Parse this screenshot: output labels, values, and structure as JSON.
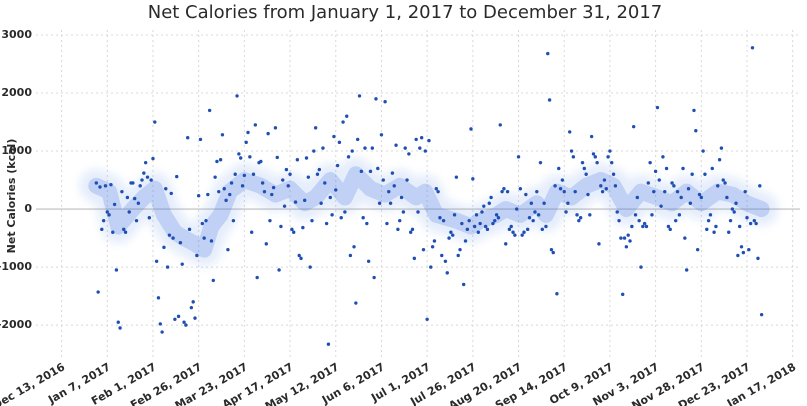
{
  "chart_data": {
    "type": "scatter",
    "title": "Net Calories from January 1, 2017 to December 31, 2017",
    "y_label": "Net Calories (kcal)",
    "xlim": [
      "2016-11-29",
      "2018-01-21"
    ],
    "xticks": [
      {
        "value": "2016-12-13",
        "label": "Dec 13, 2016"
      },
      {
        "value": "2017-01-07",
        "label": "Jan 7, 2017"
      },
      {
        "value": "2017-02-01",
        "label": "Feb 1, 2017"
      },
      {
        "value": "2017-02-26",
        "label": "Feb 26, 2017"
      },
      {
        "value": "2017-03-23",
        "label": "Mar 23, 2017"
      },
      {
        "value": "2017-04-17",
        "label": "Apr 17, 2017"
      },
      {
        "value": "2017-05-12",
        "label": "May 12, 2017"
      },
      {
        "value": "2017-06-06",
        "label": "Jun 6, 2017"
      },
      {
        "value": "2017-07-01",
        "label": "Jul 1, 2017"
      },
      {
        "value": "2017-07-26",
        "label": "Jul 26, 2017"
      },
      {
        "value": "2017-08-20",
        "label": "Aug 20, 2017"
      },
      {
        "value": "2017-09-14",
        "label": "Sep 14, 2017"
      },
      {
        "value": "2017-10-09",
        "label": "Oct 9, 2017"
      },
      {
        "value": "2017-11-03",
        "label": "Nov 3, 2017"
      },
      {
        "value": "2017-11-28",
        "label": "Nov 28, 2017"
      },
      {
        "value": "2017-12-23",
        "label": "Dec 23, 2017"
      },
      {
        "value": "2018-01-17",
        "label": "Jan 17, 2018"
      }
    ],
    "ylim": [
      -2550,
      3000
    ],
    "yticks": [
      -2000,
      -1000,
      0,
      1000,
      2000,
      3000
    ],
    "grid": true,
    "series": [
      {
        "mode": "markers",
        "color": "#1f4fb4",
        "x": [
          "2017-01-01",
          "2017-01-02",
          "2017-01-03",
          "2017-01-04",
          "2017-01-05",
          "2017-01-06",
          "2017-01-07",
          "2017-01-08",
          "2017-01-09",
          "2017-01-10",
          "2017-01-11",
          "2017-01-12",
          "2017-01-13",
          "2017-01-14",
          "2017-01-15",
          "2017-01-16",
          "2017-01-17",
          "2017-01-18",
          "2017-01-19",
          "2017-01-20",
          "2017-01-21",
          "2017-01-22",
          "2017-01-23",
          "2017-01-24",
          "2017-01-25",
          "2017-01-26",
          "2017-01-27",
          "2017-01-28",
          "2017-01-29",
          "2017-01-30",
          "2017-01-31",
          "2017-02-01",
          "2017-02-02",
          "2017-02-03",
          "2017-02-04",
          "2017-02-05",
          "2017-02-06",
          "2017-02-07",
          "2017-02-08",
          "2017-02-09",
          "2017-02-10",
          "2017-02-11",
          "2017-02-12",
          "2017-02-13",
          "2017-02-14",
          "2017-02-15",
          "2017-02-16",
          "2017-02-17",
          "2017-02-18",
          "2017-02-19",
          "2017-02-20",
          "2017-02-21",
          "2017-02-22",
          "2017-02-23",
          "2017-02-24",
          "2017-02-25",
          "2017-02-26",
          "2017-02-27",
          "2017-02-28",
          "2017-03-01",
          "2017-03-02",
          "2017-03-03",
          "2017-03-04",
          "2017-03-05",
          "2017-03-06",
          "2017-03-07",
          "2017-03-08",
          "2017-03-09",
          "2017-03-10",
          "2017-03-11",
          "2017-03-12",
          "2017-03-13",
          "2017-03-14",
          "2017-03-15",
          "2017-03-16",
          "2017-03-17",
          "2017-03-18",
          "2017-03-19",
          "2017-03-20",
          "2017-03-21",
          "2017-03-22",
          "2017-03-23",
          "2017-03-24",
          "2017-03-25",
          "2017-03-26",
          "2017-03-27",
          "2017-03-28",
          "2017-03-29",
          "2017-03-30",
          "2017-03-31",
          "2017-04-01",
          "2017-04-02",
          "2017-04-03",
          "2017-04-04",
          "2017-04-05",
          "2017-04-06",
          "2017-04-07",
          "2017-04-08",
          "2017-04-09",
          "2017-04-10",
          "2017-04-11",
          "2017-04-12",
          "2017-04-13",
          "2017-04-14",
          "2017-04-15",
          "2017-04-16",
          "2017-04-17",
          "2017-04-18",
          "2017-04-19",
          "2017-04-20",
          "2017-04-21",
          "2017-04-22",
          "2017-04-23",
          "2017-04-24",
          "2017-04-25",
          "2017-04-26",
          "2017-04-27",
          "2017-04-28",
          "2017-04-29",
          "2017-04-30",
          "2017-05-01",
          "2017-05-02",
          "2017-05-03",
          "2017-05-04",
          "2017-05-05",
          "2017-05-06",
          "2017-05-07",
          "2017-05-08",
          "2017-05-09",
          "2017-05-10",
          "2017-05-11",
          "2017-05-12",
          "2017-05-13",
          "2017-05-14",
          "2017-05-15",
          "2017-05-16",
          "2017-05-17",
          "2017-05-18",
          "2017-05-19",
          "2017-05-20",
          "2017-05-21",
          "2017-05-22",
          "2017-05-23",
          "2017-05-24",
          "2017-05-25",
          "2017-05-26",
          "2017-05-27",
          "2017-05-28",
          "2017-05-29",
          "2017-05-30",
          "2017-05-31",
          "2017-06-01",
          "2017-06-02",
          "2017-06-03",
          "2017-06-04",
          "2017-06-05",
          "2017-06-06",
          "2017-06-07",
          "2017-06-08",
          "2017-06-09",
          "2017-06-10",
          "2017-06-11",
          "2017-06-12",
          "2017-06-13",
          "2017-06-14",
          "2017-06-15",
          "2017-06-16",
          "2017-06-17",
          "2017-06-18",
          "2017-06-19",
          "2017-06-20",
          "2017-06-21",
          "2017-06-22",
          "2017-06-23",
          "2017-06-24",
          "2017-06-25",
          "2017-06-26",
          "2017-06-27",
          "2017-06-28",
          "2017-06-29",
          "2017-06-30",
          "2017-07-01",
          "2017-07-02",
          "2017-07-03",
          "2017-07-04",
          "2017-07-05",
          "2017-07-06",
          "2017-07-07",
          "2017-07-08",
          "2017-07-09",
          "2017-07-10",
          "2017-07-11",
          "2017-07-12",
          "2017-07-13",
          "2017-07-14",
          "2017-07-15",
          "2017-07-16",
          "2017-07-17",
          "2017-07-18",
          "2017-07-19",
          "2017-07-20",
          "2017-07-21",
          "2017-07-22",
          "2017-07-23",
          "2017-07-24",
          "2017-07-25",
          "2017-07-26",
          "2017-07-27",
          "2017-07-28",
          "2017-07-29",
          "2017-07-30",
          "2017-07-31",
          "2017-08-01",
          "2017-08-02",
          "2017-08-03",
          "2017-08-04",
          "2017-08-05",
          "2017-08-06",
          "2017-08-07",
          "2017-08-08",
          "2017-08-09",
          "2017-08-10",
          "2017-08-11",
          "2017-08-12",
          "2017-08-13",
          "2017-08-14",
          "2017-08-15",
          "2017-08-16",
          "2017-08-17",
          "2017-08-18",
          "2017-08-19",
          "2017-08-20",
          "2017-08-21",
          "2017-08-22",
          "2017-08-23",
          "2017-08-24",
          "2017-08-25",
          "2017-08-26",
          "2017-08-27",
          "2017-08-28",
          "2017-08-29",
          "2017-08-30",
          "2017-08-31",
          "2017-09-01",
          "2017-09-02",
          "2017-09-03",
          "2017-09-04",
          "2017-09-05",
          "2017-09-06",
          "2017-09-07",
          "2017-09-08",
          "2017-09-09",
          "2017-09-10",
          "2017-09-11",
          "2017-09-12",
          "2017-09-13",
          "2017-09-14",
          "2017-09-15",
          "2017-09-16",
          "2017-09-17",
          "2017-09-18",
          "2017-09-19",
          "2017-09-20",
          "2017-09-21",
          "2017-09-22",
          "2017-09-23",
          "2017-09-24",
          "2017-09-25",
          "2017-09-26",
          "2017-09-27",
          "2017-09-28",
          "2017-09-29",
          "2017-09-30",
          "2017-10-01",
          "2017-10-02",
          "2017-10-03",
          "2017-10-04",
          "2017-10-05",
          "2017-10-06",
          "2017-10-07",
          "2017-10-08",
          "2017-10-09",
          "2017-10-10",
          "2017-10-11",
          "2017-10-12",
          "2017-10-13",
          "2017-10-14",
          "2017-10-15",
          "2017-10-16",
          "2017-10-17",
          "2017-10-18",
          "2017-10-19",
          "2017-10-20",
          "2017-10-21",
          "2017-10-22",
          "2017-10-23",
          "2017-10-24",
          "2017-10-25",
          "2017-10-26",
          "2017-10-27",
          "2017-10-28",
          "2017-10-29",
          "2017-10-30",
          "2017-10-31",
          "2017-11-01",
          "2017-11-02",
          "2017-11-03",
          "2017-11-04",
          "2017-11-05",
          "2017-11-06",
          "2017-11-07",
          "2017-11-08",
          "2017-11-09",
          "2017-11-10",
          "2017-11-11",
          "2017-11-12",
          "2017-11-13",
          "2017-11-14",
          "2017-11-15",
          "2017-11-16",
          "2017-11-17",
          "2017-11-18",
          "2017-11-19",
          "2017-11-20",
          "2017-11-21",
          "2017-11-22",
          "2017-11-23",
          "2017-11-24",
          "2017-11-25",
          "2017-11-26",
          "2017-11-27",
          "2017-11-28",
          "2017-11-29",
          "2017-11-30",
          "2017-12-01",
          "2017-12-02",
          "2017-12-03",
          "2017-12-04",
          "2017-12-05",
          "2017-12-06",
          "2017-12-07",
          "2017-12-08",
          "2017-12-09",
          "2017-12-10",
          "2017-12-11",
          "2017-12-12",
          "2017-12-13",
          "2017-12-14",
          "2017-12-15",
          "2017-12-16",
          "2017-12-17",
          "2017-12-18",
          "2017-12-19",
          "2017-12-20",
          "2017-12-21",
          "2017-12-22",
          "2017-12-23",
          "2017-12-24",
          "2017-12-25",
          "2017-12-26",
          "2017-12-27",
          "2017-12-28",
          "2017-12-29",
          "2017-12-30",
          "2017-12-31"
        ],
        "values": [
          450,
          -1430,
          380,
          -350,
          -200,
          400,
          -50,
          -100,
          420,
          -400,
          80,
          -1050,
          -1950,
          -2050,
          300,
          -350,
          -400,
          200,
          -50,
          450,
          450,
          180,
          -200,
          100,
          400,
          500,
          620,
          800,
          550,
          -150,
          500,
          870,
          1500,
          -900,
          -1530,
          -1980,
          -2120,
          -660,
          350,
          -1000,
          -450,
          270,
          -500,
          -1900,
          560,
          -1850,
          -580,
          -950,
          -1950,
          -2000,
          1230,
          -350,
          -1700,
          -1600,
          -1880,
          -800,
          230,
          1200,
          -250,
          -500,
          -200,
          250,
          1700,
          -550,
          -1230,
          550,
          820,
          300,
          850,
          1280,
          350,
          150,
          -700,
          250,
          450,
          -200,
          600,
          1950,
          950,
          880,
          400,
          580,
          1150,
          1320,
          900,
          -400,
          600,
          1450,
          -1180,
          800,
          820,
          450,
          300,
          -600,
          1300,
          -200,
          250,
          370,
          1400,
          890,
          -1050,
          -300,
          500,
          50,
          680,
          400,
          600,
          -350,
          -400,
          120,
          850,
          -800,
          -850,
          -320,
          150,
          880,
          550,
          -1000,
          -200,
          1000,
          1400,
          600,
          680,
          100,
          1050,
          450,
          -250,
          -2330,
          200,
          -100,
          1250,
          330,
          750,
          1150,
          -150,
          1500,
          -50,
          1600,
          900,
          -800,
          1000,
          -650,
          -1620,
          1200,
          1950,
          650,
          -150,
          1050,
          -250,
          -900,
          650,
          1050,
          -1180,
          1900,
          700,
          100,
          1280,
          500,
          1850,
          -250,
          300,
          100,
          620,
          400,
          1100,
          -350,
          -200,
          200,
          -50,
          1050,
          500,
          950,
          -400,
          -350,
          -850,
          1200,
          -50,
          1050,
          1230,
          -700,
          1000,
          -1900,
          1180,
          -1000,
          -650,
          -550,
          350,
          300,
          -150,
          -800,
          -200,
          -900,
          -1100,
          -500,
          -400,
          -450,
          -100,
          550,
          -800,
          -700,
          -250,
          -1300,
          -550,
          -350,
          -200,
          1380,
          520,
          -300,
          -100,
          -400,
          -250,
          -50,
          50,
          -300,
          -350,
          100,
          200,
          -250,
          -200,
          -100,
          -150,
          1450,
          300,
          350,
          -600,
          300,
          -350,
          -300,
          -400,
          -450,
          0,
          900,
          350,
          -450,
          -400,
          250,
          -350,
          -150,
          100,
          -200,
          -50,
          300,
          -100,
          800,
          -350,
          100,
          -300,
          2680,
          1880,
          -700,
          -750,
          400,
          -1460,
          700,
          350,
          500,
          300,
          -50,
          100,
          1330,
          1000,
          900,
          300,
          -100,
          -200,
          -150,
          800,
          700,
          600,
          250,
          -100,
          1250,
          950,
          900,
          800,
          -600,
          400,
          300,
          500,
          350,
          900,
          1000,
          800,
          600,
          400,
          -50,
          -200,
          -500,
          -1470,
          -500,
          -650,
          -450,
          -550,
          -300,
          1420,
          -100,
          200,
          -200,
          -1000,
          -300,
          -250,
          -300,
          450,
          800,
          -100,
          300,
          650,
          1750,
          500,
          50,
          900,
          300,
          700,
          -300,
          -350,
          450,
          400,
          -200,
          300,
          -100,
          200,
          700,
          -500,
          -1050,
          350,
          100,
          600,
          1700,
          1350,
          -700,
          250,
          200,
          1000,
          600,
          -350,
          -200,
          -100,
          700,
          -400,
          -300,
          400,
          850,
          1050,
          500,
          450,
          200,
          -400,
          -200,
          0,
          -50,
          100,
          -800,
          -300,
          -650,
          -750,
          300,
          -150,
          -700,
          -250,
          2780,
          -200,
          -250,
          -850,
          400,
          -1820
        ]
      },
      {
        "mode": "lines",
        "color": "#3b6fe0",
        "x": [
          "2017-01-01",
          "2017-01-08",
          "2017-01-13",
          "2017-01-21",
          "2017-01-27",
          "2017-02-02",
          "2017-02-07",
          "2017-02-13",
          "2017-02-18",
          "2017-02-24",
          "2017-03-01",
          "2017-03-05",
          "2017-03-10",
          "2017-03-15",
          "2017-03-23",
          "2017-04-01",
          "2017-04-09",
          "2017-04-17",
          "2017-04-25",
          "2017-05-01",
          "2017-05-09",
          "2017-05-17",
          "2017-05-23",
          "2017-05-31",
          "2017-06-08",
          "2017-06-16",
          "2017-06-25",
          "2017-06-30",
          "2017-07-06",
          "2017-07-17",
          "2017-07-25",
          "2017-07-30",
          "2017-08-08",
          "2017-08-13",
          "2017-08-21",
          "2017-08-30",
          "2017-09-04",
          "2017-09-10",
          "2017-09-18",
          "2017-09-26",
          "2017-10-04",
          "2017-10-11",
          "2017-10-18",
          "2017-10-26",
          "2017-11-04",
          "2017-11-12",
          "2017-11-20",
          "2017-11-28",
          "2017-12-07",
          "2017-12-15",
          "2017-12-23",
          "2017-12-31"
        ],
        "values": [
          400,
          300,
          -300,
          0,
          200,
          350,
          -100,
          -400,
          -500,
          -600,
          -700,
          -300,
          -100,
          300,
          500,
          400,
          250,
          350,
          100,
          200,
          500,
          200,
          600,
          350,
          250,
          400,
          200,
          300,
          -100,
          -200,
          -300,
          -200,
          -100,
          0,
          -100,
          100,
          -100,
          300,
          200,
          400,
          500,
          400,
          0,
          300,
          200,
          100,
          300,
          100,
          300,
          250,
          100,
          0
        ]
      }
    ]
  }
}
